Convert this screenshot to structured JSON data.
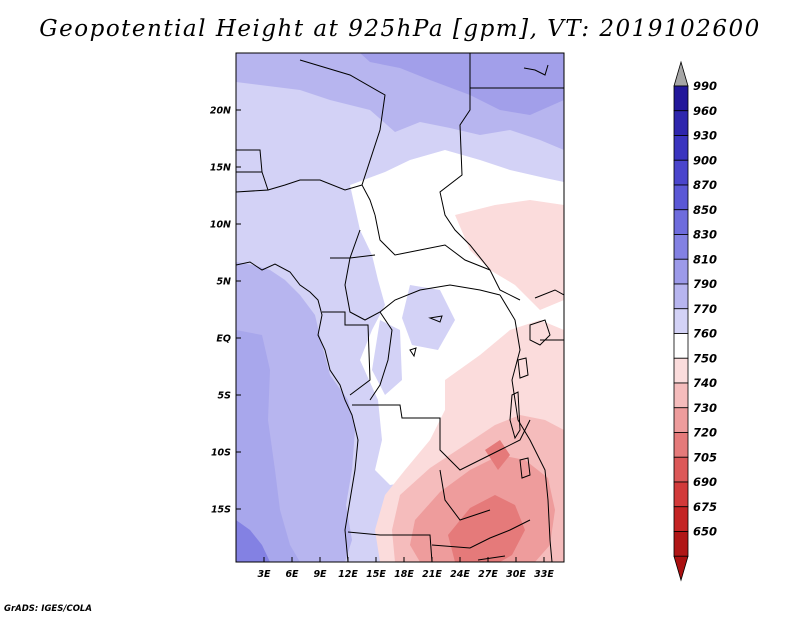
{
  "title": "Geopotential Height at 925hPa [gpm], VT: 2019102600",
  "credit": "GrADS: IGES/COLA",
  "map": {
    "lat_labels": [
      "20N",
      "15N",
      "10N",
      "5N",
      "EQ",
      "5S",
      "10S",
      "15S"
    ],
    "lon_labels": [
      "3E",
      "6E",
      "9E",
      "12E",
      "15E",
      "18E",
      "21E",
      "24E",
      "27E",
      "30E",
      "33E"
    ]
  },
  "colorbar": {
    "labels": [
      "990",
      "960",
      "930",
      "900",
      "870",
      "850",
      "830",
      "810",
      "790",
      "770",
      "760",
      "750",
      "740",
      "730",
      "720",
      "705",
      "690",
      "675",
      "650"
    ],
    "colors": [
      "#22179a",
      "#2e26ad",
      "#3a34bf",
      "#4a45cc",
      "#5b58d6",
      "#6e6cdd",
      "#8381e3",
      "#9c9ae9",
      "#b7b5ef",
      "#d3d2f6",
      "#ffffff",
      "#fbdcdc",
      "#f5bcbc",
      "#ee9c9c",
      "#e57a7a",
      "#dc5858",
      "#d23a3a",
      "#c42424",
      "#b01616"
    ],
    "top_arrow_color": "#a6a6a6",
    "bottom_arrow_color": "#aa1010"
  }
}
